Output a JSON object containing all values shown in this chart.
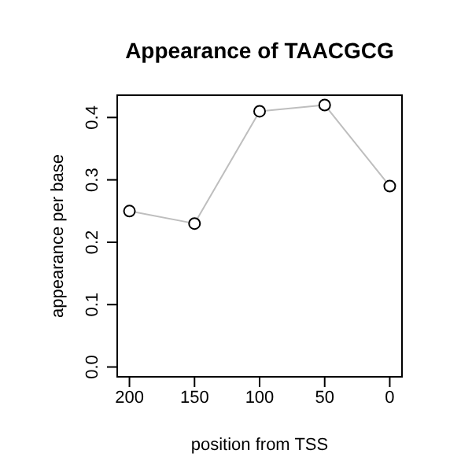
{
  "chart_data": {
    "type": "line",
    "title": "Appearance of TAACGCG",
    "xlabel": "position from TSS",
    "ylabel": "appearance per base",
    "x": [
      200,
      150,
      100,
      50,
      0
    ],
    "series": [
      {
        "color": "#bebebe",
        "values": [
          0.25,
          0.23,
          0.41,
          0.42,
          0.29
        ]
      }
    ],
    "xlim": [
      210,
      -10
    ],
    "xticks": [
      200,
      150,
      100,
      50,
      0
    ],
    "ylim": [
      -0.017,
      0.437
    ],
    "yticks": [
      {
        "value": 0,
        "label": "0.0"
      },
      0.1,
      0.2,
      0.3,
      0.4
    ],
    "marker": "circle",
    "line_style": "solid",
    "grid": false,
    "legend": false
  }
}
